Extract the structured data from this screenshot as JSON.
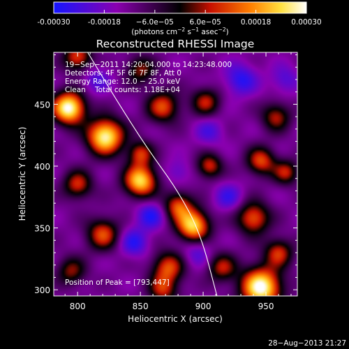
{
  "chart_data": {
    "type": "heatmap",
    "title": "Reconstructed RHESSI Image",
    "xlabel": "Heliocentric X (arcsec)",
    "ylabel": "Heliocentric Y (arcsec)",
    "xlim": [
      781,
      975
    ],
    "ylim": [
      295,
      492
    ],
    "x_ticks": [
      800,
      850,
      900,
      950
    ],
    "x_tick_labels": [
      "800",
      "850",
      "900",
      "950"
    ],
    "y_ticks": [
      300,
      350,
      400,
      450
    ],
    "y_tick_labels": [
      "300",
      "350",
      "400",
      "450"
    ],
    "colorbar": {
      "range": [
        -0.0003,
        0.0003
      ],
      "ticks": [
        -0.0003,
        -0.00018,
        -6e-05,
        6e-05,
        0.00018,
        0.0003
      ],
      "tick_labels": [
        "-0.00030",
        "-0.00018",
        "−6.0e−05",
        "6.0e−05",
        "0.00018",
        "0.00030"
      ],
      "units_prefix": "(photons cm",
      "units_exp1": "−2",
      "units_mid": " s",
      "units_exp2": "−1",
      "units_mid2": " asec",
      "units_exp3": "−2",
      "units_suffix": ")",
      "colors": [
        "#1515ff",
        "#8a00b0",
        "#000000",
        "#c81000",
        "#ff8000",
        "#ffe040",
        "#ffffff"
      ]
    },
    "annotations": {
      "time_range": "19−Sep−2011 14:20:04.000 to 14:23:48.000",
      "detectors": "Detectors: 4F 5F 6F 7F 8F, Att 0",
      "energy_range": "Energy Range: 12.0 − 25.0 keV",
      "method": "Clean",
      "total_counts": "Total counts: 1.18E+04",
      "peak": "Position of Peak = [793,447]"
    },
    "hot_spots": [
      {
        "x": 793,
        "y": 447,
        "intensity": 1.0,
        "sigma": 9
      },
      {
        "x": 822,
        "y": 424,
        "intensity": 0.95,
        "sigma": 10
      },
      {
        "x": 850,
        "y": 388,
        "intensity": 0.85,
        "sigma": 9
      },
      {
        "x": 892,
        "y": 352,
        "intensity": 0.85,
        "sigma": 9
      },
      {
        "x": 880,
        "y": 368,
        "intensity": 0.55,
        "sigma": 8
      },
      {
        "x": 850,
        "y": 410,
        "intensity": 0.5,
        "sigma": 7
      },
      {
        "x": 905,
        "y": 400,
        "intensity": 0.5,
        "sigma": 7
      },
      {
        "x": 946,
        "y": 404,
        "intensity": 0.55,
        "sigma": 8
      },
      {
        "x": 966,
        "y": 395,
        "intensity": 0.45,
        "sigma": 7
      },
      {
        "x": 940,
        "y": 358,
        "intensity": 0.6,
        "sigma": 9
      },
      {
        "x": 868,
        "y": 448,
        "intensity": 0.55,
        "sigma": 9
      },
      {
        "x": 902,
        "y": 452,
        "intensity": 0.45,
        "sigma": 8
      },
      {
        "x": 850,
        "y": 478,
        "intensity": 0.4,
        "sigma": 8
      },
      {
        "x": 800,
        "y": 488,
        "intensity": 0.55,
        "sigma": 8
      },
      {
        "x": 800,
        "y": 385,
        "intensity": 0.5,
        "sigma": 8
      },
      {
        "x": 820,
        "y": 345,
        "intensity": 0.55,
        "sigma": 9
      },
      {
        "x": 795,
        "y": 315,
        "intensity": 0.4,
        "sigma": 8
      },
      {
        "x": 872,
        "y": 318,
        "intensity": 0.55,
        "sigma": 9
      },
      {
        "x": 868,
        "y": 300,
        "intensity": 0.45,
        "sigma": 8
      },
      {
        "x": 946,
        "y": 302,
        "intensity": 1.0,
        "sigma": 11
      },
      {
        "x": 960,
        "y": 330,
        "intensity": 0.5,
        "sigma": 8
      },
      {
        "x": 915,
        "y": 318,
        "intensity": 0.45,
        "sigma": 8
      },
      {
        "x": 958,
        "y": 440,
        "intensity": 0.45,
        "sigma": 8
      }
    ],
    "cold_spots": [
      {
        "x": 930,
        "y": 470,
        "intensity": 0.9,
        "sigma": 9
      },
      {
        "x": 905,
        "y": 428,
        "intensity": 0.6,
        "sigma": 8
      },
      {
        "x": 880,
        "y": 395,
        "intensity": 0.5,
        "sigma": 7
      },
      {
        "x": 858,
        "y": 360,
        "intensity": 0.9,
        "sigma": 8
      },
      {
        "x": 845,
        "y": 338,
        "intensity": 0.85,
        "sigma": 8
      },
      {
        "x": 920,
        "y": 375,
        "intensity": 0.7,
        "sigma": 8
      },
      {
        "x": 895,
        "y": 330,
        "intensity": 0.6,
        "sigma": 8
      },
      {
        "x": 965,
        "y": 470,
        "intensity": 0.6,
        "sigma": 8
      },
      {
        "x": 815,
        "y": 470,
        "intensity": 0.6,
        "sigma": 8
      }
    ],
    "limb_curve": [
      [
        808,
        492
      ],
      [
        830,
        455
      ],
      [
        855,
        415
      ],
      [
        880,
        380
      ],
      [
        898,
        345
      ],
      [
        911,
        295
      ]
    ],
    "plot_date": "28−Aug−2013 21:27"
  }
}
